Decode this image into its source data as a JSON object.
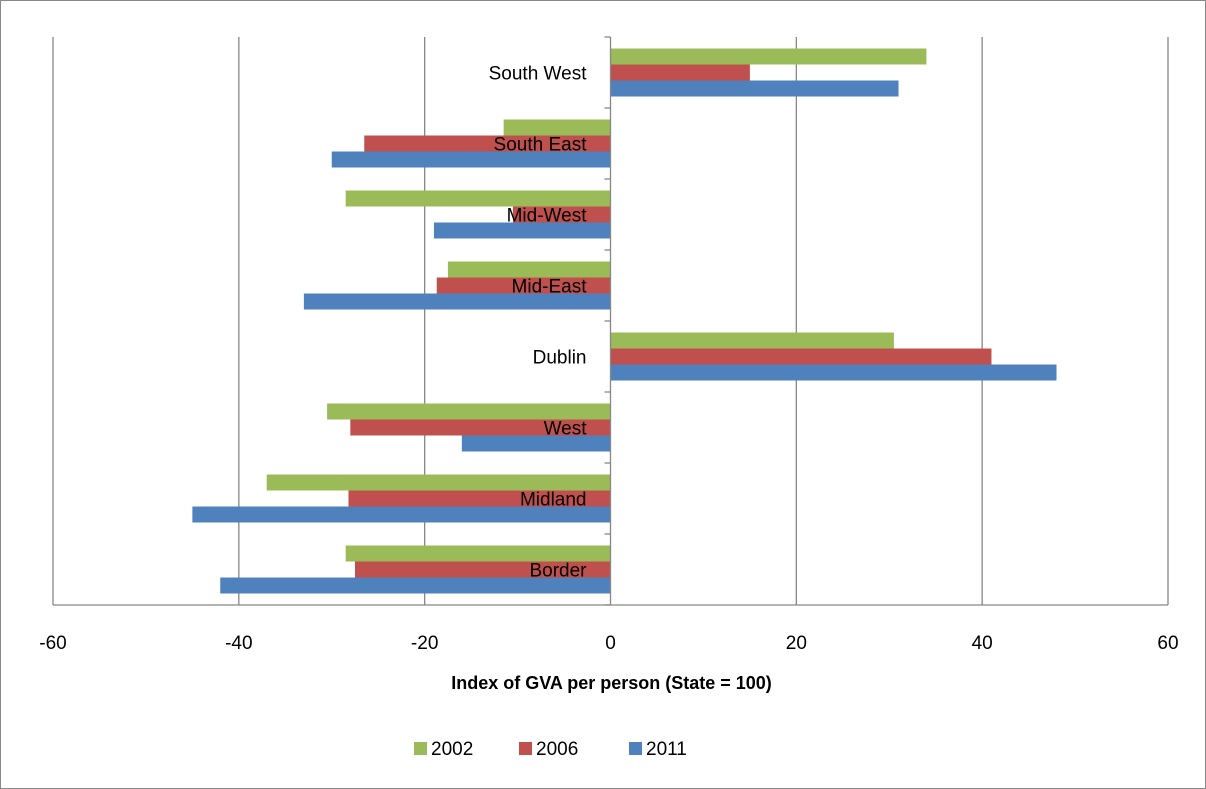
{
  "chart_data": {
    "type": "bar",
    "orientation": "horizontal",
    "categories": [
      "Border",
      "Midland",
      "West",
      "Dublin",
      "Mid-East",
      "Mid-West",
      "South East",
      "South West"
    ],
    "series": [
      {
        "name": "2002",
        "color": "#9BBB59",
        "values": [
          -28.5,
          -37,
          -30.5,
          30.5,
          -17.5,
          -28.5,
          -11.5,
          34
        ]
      },
      {
        "name": "2006",
        "color": "#C0504D",
        "values": [
          -27.5,
          -28.2,
          -28,
          41,
          -18.7,
          -10.5,
          -26.5,
          15
        ]
      },
      {
        "name": "2011",
        "color": "#4F81BD",
        "values": [
          -42,
          -45,
          -16,
          48,
          -33,
          -19,
          -30,
          31
        ]
      }
    ],
    "xlabel": "Index of GVA per person (State = 100)",
    "xlim": [
      -60,
      60
    ],
    "xticks": [
      "-60",
      "-40",
      "-20",
      "0",
      "20",
      "40",
      "60"
    ],
    "grid": true,
    "legend_position": "bottom"
  }
}
